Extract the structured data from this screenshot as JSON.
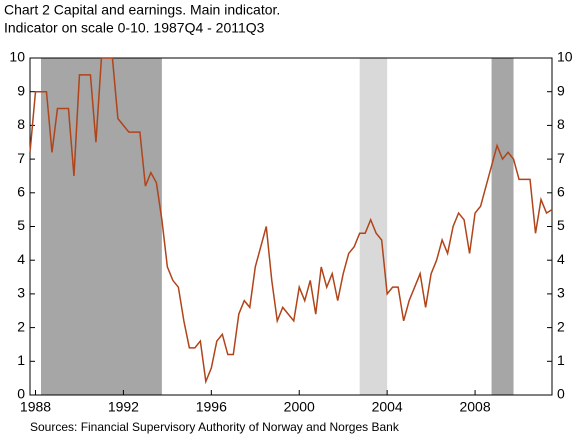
{
  "chart_data": {
    "type": "line",
    "title": "Chart 2 Capital and earnings. Main indicator.",
    "subtitle": "Indicator on scale 0-10. 1987Q4 - 2011Q3",
    "source": "Sources: Financial Supervisory Authority of Norway and Norges Bank",
    "categories": [
      null,
      "1988",
      null,
      null,
      null,
      null,
      null,
      null,
      null,
      null,
      null,
      null,
      null,
      null,
      null,
      null,
      null,
      "1992",
      null,
      null,
      null,
      null,
      null,
      null,
      null,
      null,
      null,
      null,
      null,
      null,
      null,
      null,
      null,
      "1996",
      null,
      null,
      null,
      null,
      null,
      null,
      null,
      null,
      null,
      null,
      null,
      null,
      null,
      null,
      null,
      "2000",
      null,
      null,
      null,
      null,
      null,
      null,
      null,
      null,
      null,
      null,
      null,
      null,
      null,
      null,
      null,
      "2004",
      null,
      null,
      null,
      null,
      null,
      null,
      null,
      null,
      null,
      null,
      null,
      null,
      null,
      null,
      null,
      "2008",
      null,
      null,
      null,
      null,
      null,
      null,
      null,
      null,
      null,
      null,
      null,
      null,
      null,
      null
    ],
    "values": [
      7.2,
      9.0,
      9.0,
      9.0,
      7.2,
      8.5,
      8.5,
      8.5,
      6.5,
      9.5,
      9.5,
      9.5,
      7.5,
      10,
      10,
      10,
      8.2,
      8.0,
      7.8,
      7.8,
      7.8,
      6.2,
      6.6,
      6.3,
      5.2,
      3.8,
      3.4,
      3.2,
      2.2,
      1.4,
      1.4,
      1.6,
      0.4,
      0.8,
      1.6,
      1.8,
      1.2,
      1.2,
      2.4,
      2.8,
      2.6,
      3.8,
      4.4,
      5.0,
      3.4,
      2.2,
      2.6,
      2.4,
      2.2,
      3.2,
      2.8,
      3.4,
      2.4,
      3.8,
      3.2,
      3.6,
      2.8,
      3.6,
      4.2,
      4.4,
      4.8,
      4.8,
      5.2,
      4.8,
      4.6,
      3.0,
      3.2,
      3.2,
      2.2,
      2.8,
      3.2,
      3.6,
      2.6,
      3.6,
      4.0,
      4.6,
      4.2,
      5.0,
      5.4,
      5.2,
      4.2,
      5.4,
      5.6,
      6.2,
      6.8,
      7.4,
      7.0,
      7.2,
      7.0,
      6.4,
      6.4,
      6.4,
      4.8,
      5.8,
      5.4,
      5.5
    ],
    "color": "#b0441a",
    "shaded_periods": [
      {
        "start": 2,
        "end": 24,
        "color": "#a6a6a6"
      },
      {
        "start": 60,
        "end": 65,
        "color": "#d9d9d9"
      },
      {
        "start": 84,
        "end": 88,
        "color": "#a6a6a6"
      }
    ],
    "ylim": [
      0,
      10
    ],
    "yticks": [
      0,
      1,
      2,
      3,
      4,
      5,
      6,
      7,
      8,
      9,
      10
    ]
  }
}
